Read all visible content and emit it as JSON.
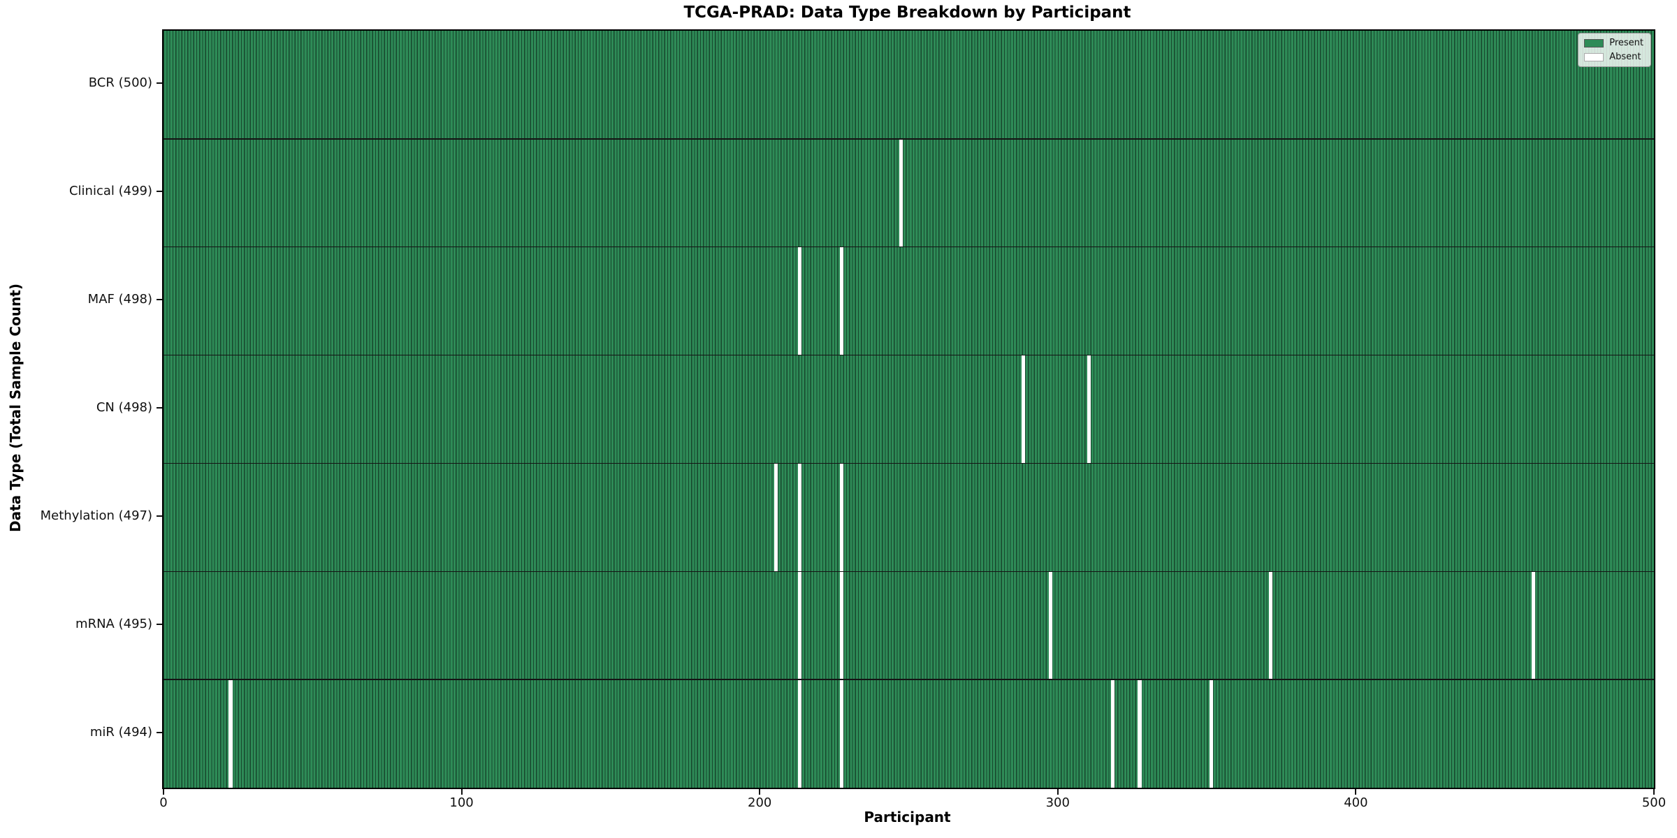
{
  "chart_data": {
    "type": "heatmap",
    "title": "TCGA-PRAD: Data Type Breakdown by Participant",
    "xlabel": "Participant",
    "ylabel": "Data Type (Total Sample Count)",
    "x_range": [
      0,
      500
    ],
    "x_ticks": [
      0,
      100,
      200,
      300,
      400,
      500
    ],
    "n_participants": 500,
    "grid": false,
    "legend_position": "upper right",
    "legend": [
      {
        "label": "Present",
        "color": "#2e8b57"
      },
      {
        "label": "Absent",
        "color": "#ffffff"
      }
    ],
    "colors": {
      "present_fill": "#2e8b57",
      "bar_edge": "#17472d",
      "absent_fill": "#ffffff",
      "row_separator": "#141414",
      "plot_border": "#000000",
      "legend_bg": "rgba(255,255,255,0.8)",
      "legend_border": "#999999",
      "legend_swatch_edge": "#555555",
      "absent_swatch_edge": "#aaaaaa"
    },
    "rows": [
      {
        "label": "BCR (500)",
        "data_type": "BCR",
        "total": 500,
        "absent_participants": []
      },
      {
        "label": "Clinical (499)",
        "data_type": "Clinical",
        "total": 499,
        "absent_participants": [
          247
        ]
      },
      {
        "label": "MAF (498)",
        "data_type": "MAF",
        "total": 498,
        "absent_participants": [
          213,
          227
        ]
      },
      {
        "label": "CN (498)",
        "data_type": "CN",
        "total": 498,
        "absent_participants": [
          288,
          310
        ]
      },
      {
        "label": "Methylation (497)",
        "data_type": "Methylation",
        "total": 497,
        "absent_participants": [
          205,
          213,
          227
        ]
      },
      {
        "label": "mRNA (495)",
        "data_type": "mRNA",
        "total": 495,
        "absent_participants": [
          213,
          227,
          297,
          371,
          459
        ]
      },
      {
        "label": "miR (494)",
        "data_type": "miR",
        "total": 494,
        "absent_participants": [
          22,
          213,
          227,
          318,
          327,
          351
        ]
      }
    ]
  }
}
